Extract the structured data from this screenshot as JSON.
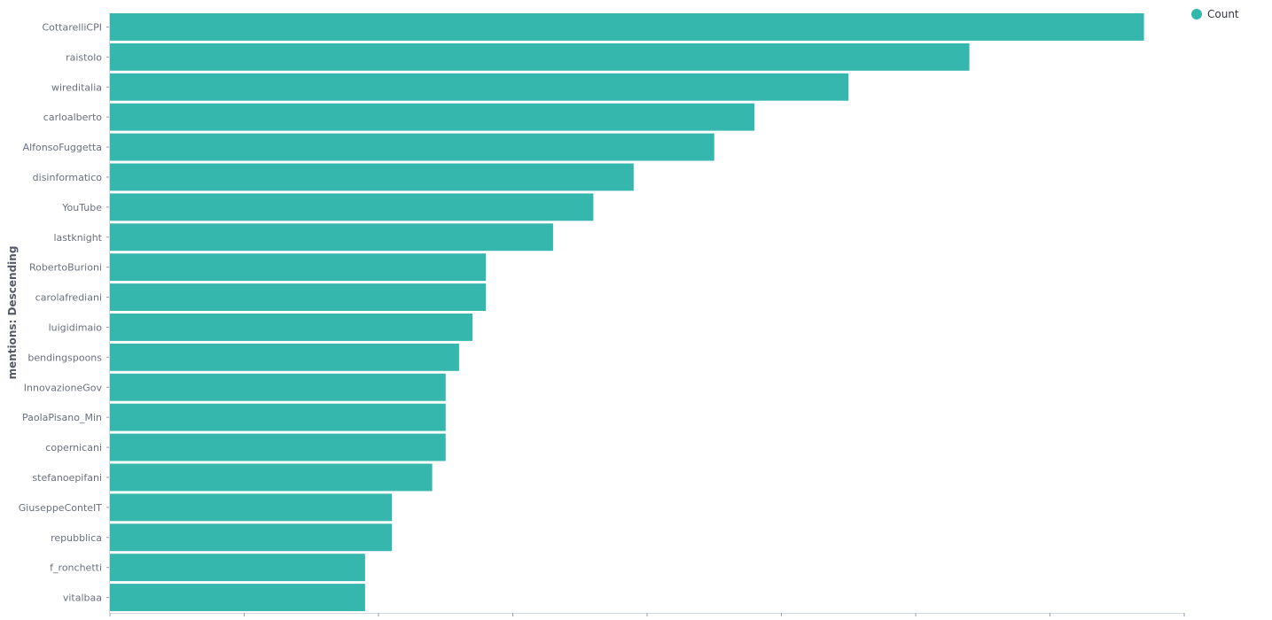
{
  "chart_data": {
    "type": "bar",
    "orientation": "horizontal",
    "ylabel": "mentions: Descending",
    "xlabel": "",
    "categories": [
      "CottarelliCPI",
      "raistolo",
      "wireditalia",
      "carloalberto",
      "AlfonsoFuggetta",
      "disinformatico",
      "YouTube",
      "lastknight",
      "RobertoBurioni",
      "carolafrediani",
      "luigidimaio",
      "bendingspoons",
      "InnovazioneGov",
      "PaolaPisano_Min",
      "copernicani",
      "stefanoepifani",
      "GiuseppeConteIT",
      "repubblica",
      "f_ronchetti",
      "vitalbaa"
    ],
    "series": [
      {
        "name": "Count",
        "color": "#36b7ae",
        "values": [
          77,
          64,
          55,
          48,
          45,
          39,
          36,
          33,
          28,
          28,
          27,
          26,
          25,
          25,
          25,
          24,
          21,
          21,
          19,
          19
        ]
      }
    ],
    "xlim": [
      0,
      80
    ],
    "x_ticks": [
      0,
      10,
      20,
      30,
      40,
      50,
      60,
      70,
      80
    ],
    "x_tick_labels_visible": false,
    "grid": false,
    "legend_position": "top-right"
  }
}
